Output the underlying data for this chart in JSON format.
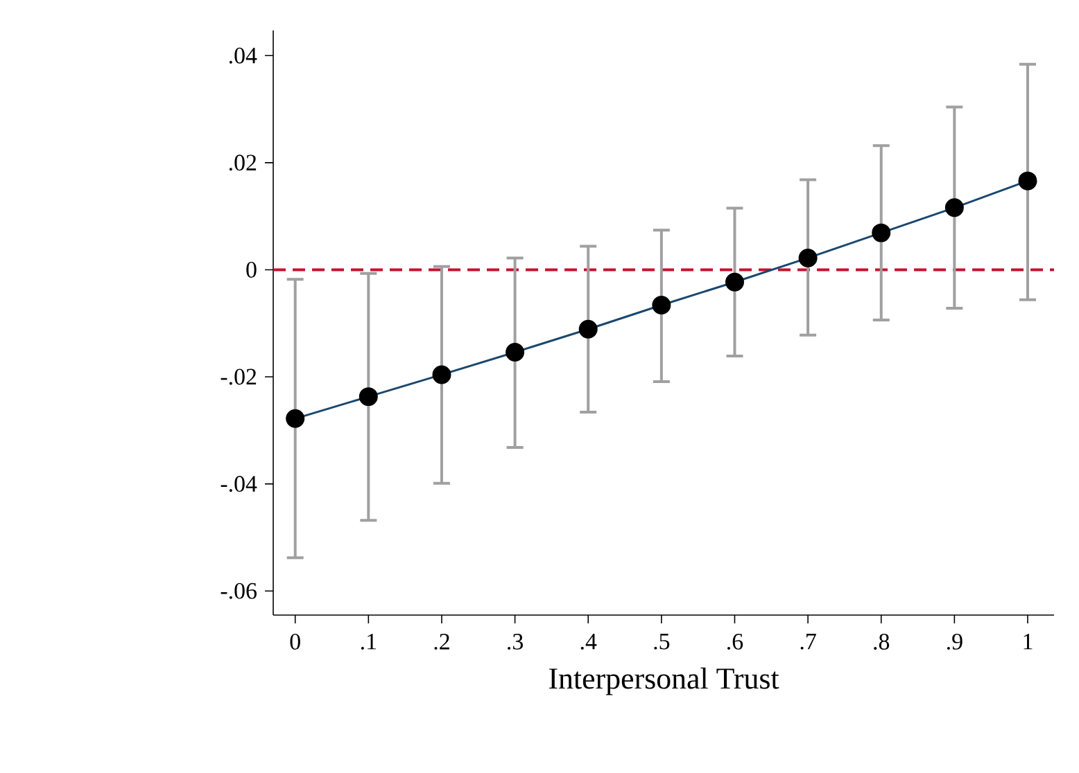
{
  "chart_data": {
    "type": "line",
    "xlabel": "Interpersonal Trust",
    "x": [
      0,
      0.1,
      0.2,
      0.3,
      0.4,
      0.5,
      0.6,
      0.7,
      0.8,
      0.9,
      1
    ],
    "series": [
      {
        "color": "#1a476f",
        "values": [
          -0.0278,
          -0.0237,
          -0.0196,
          -0.0154,
          -0.0111,
          -0.0066,
          -0.0023,
          0.0022,
          0.0069,
          0.0116,
          0.0166
        ],
        "errors": [
          [
            -0.0538,
            -0.0018
          ],
          [
            -0.0468,
            -0.0007
          ],
          [
            -0.0399,
            0.0006
          ],
          [
            -0.0332,
            0.0022
          ],
          [
            -0.0266,
            0.0044
          ],
          [
            -0.0209,
            0.0074
          ],
          [
            -0.0161,
            0.0115
          ],
          [
            -0.0122,
            0.0168
          ],
          [
            -0.0094,
            0.0232
          ],
          [
            -0.0072,
            0.0304
          ],
          [
            -0.0056,
            0.0384
          ]
        ]
      }
    ],
    "marker": "circle",
    "line_style": "solid",
    "xlim": [
      -0.03,
      1.036
    ],
    "ylim": [
      -0.0645,
      0.0447
    ],
    "xticks": [
      0,
      {
        "value": 0.1,
        "label": ".1"
      },
      {
        "value": 0.2,
        "label": ".2"
      },
      {
        "value": 0.3,
        "label": ".3"
      },
      {
        "value": 0.4,
        "label": ".4"
      },
      {
        "value": 0.5,
        "label": ".5"
      },
      {
        "value": 0.6,
        "label": ".6"
      },
      {
        "value": 0.7,
        "label": ".7"
      },
      {
        "value": 0.8,
        "label": ".8"
      },
      {
        "value": 0.9,
        "label": ".9"
      },
      1
    ],
    "yticks": [
      {
        "value": -0.06,
        "label": "-.06"
      },
      {
        "value": -0.04,
        "label": "-.04"
      },
      {
        "value": -0.02,
        "label": "-.02"
      },
      0,
      {
        "value": 0.02,
        "label": ".02"
      },
      {
        "value": 0.04,
        "label": ".04"
      }
    ],
    "ref_lines": [
      {
        "axis": "y",
        "value": 0,
        "color": "#c8102e",
        "line_style": "dashed"
      }
    ],
    "grid": false
  }
}
